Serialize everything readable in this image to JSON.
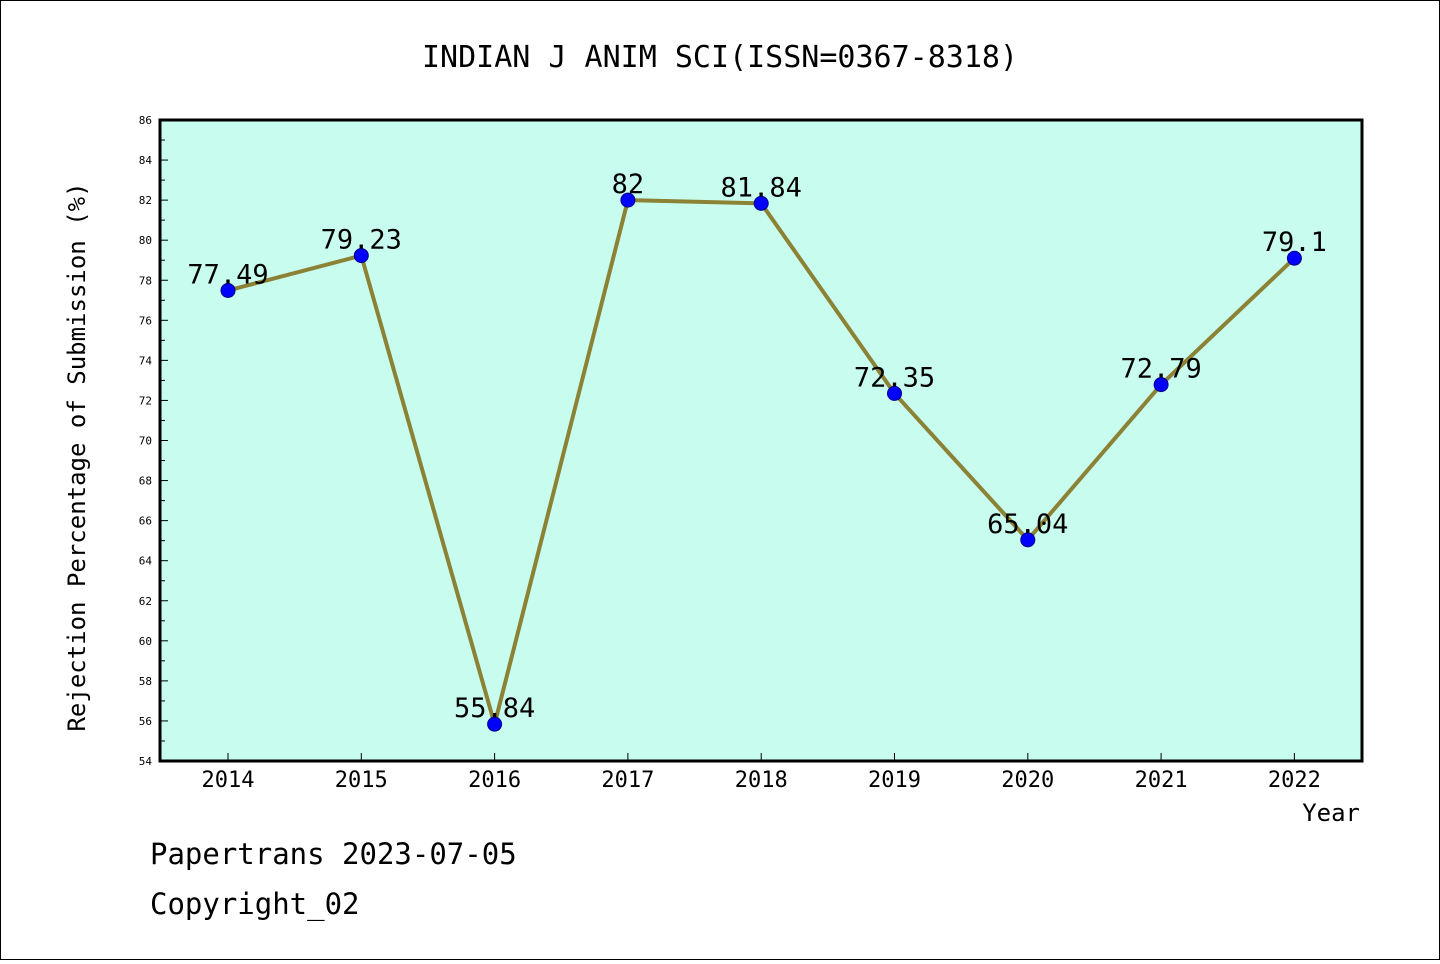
{
  "chart_data": {
    "type": "line",
    "title": "INDIAN J ANIM SCI(ISSN=0367-8318)",
    "xlabel": "Year",
    "ylabel": "Rejection Percentage of Submission (%)",
    "categories": [
      "2014",
      "2015",
      "2016",
      "2017",
      "2018",
      "2019",
      "2020",
      "2021",
      "2022"
    ],
    "values": [
      77.49,
      79.23,
      55.84,
      82,
      81.84,
      72.35,
      65.04,
      72.79,
      79.1
    ],
    "data_labels": [
      "77.49",
      "79.23",
      "55.84",
      "82",
      "81.84",
      "72.35",
      "65.04",
      "72.79",
      "79.1"
    ],
    "ylim": [
      54,
      86
    ],
    "yticks": [
      "54",
      "56",
      "58",
      "60",
      "62",
      "64",
      "66",
      "68",
      "70",
      "72",
      "74",
      "76",
      "78",
      "80",
      "82",
      "84",
      "86"
    ],
    "grid": false,
    "legend": "none",
    "colors": {
      "plot_background": "#c8fcee",
      "line": "#8b8235",
      "marker": "#0000ff"
    }
  },
  "footer": {
    "line1": "Papertrans 2023-07-05",
    "line2": "Copyright_02"
  }
}
